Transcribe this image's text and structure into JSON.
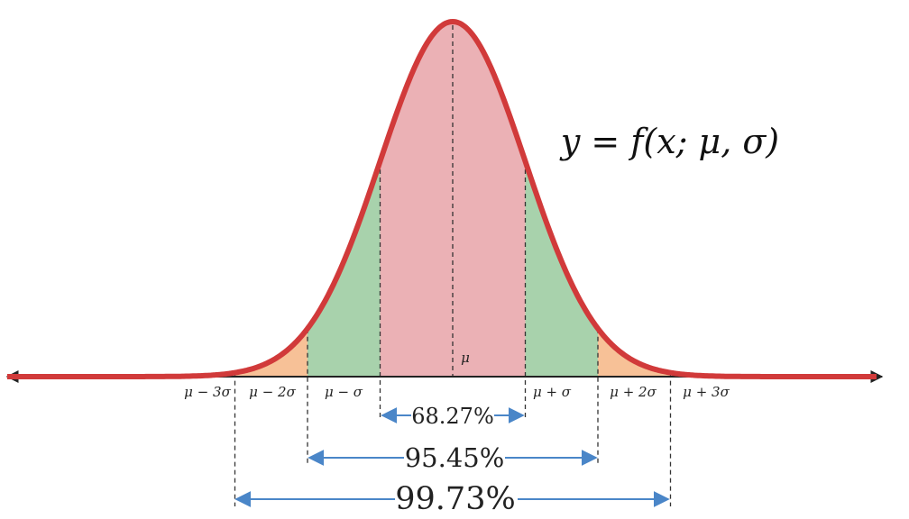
{
  "formula": "y = f(x; μ, σ)",
  "mean_label": "μ",
  "axis_labels": [
    "μ − 3σ",
    "μ − 2σ",
    "μ − σ",
    "μ + σ",
    "μ + 2σ",
    "μ + 3σ"
  ],
  "intervals": [
    {
      "label": "68.27%",
      "from": -1,
      "to": 1
    },
    {
      "label": "95.45%",
      "from": -2,
      "to": 2
    },
    {
      "label": "99.73%",
      "from": -3,
      "to": 3
    }
  ],
  "colors": {
    "curve": "#d13a3a",
    "band_1sigma": "#ebb1b5",
    "band_2sigma": "#a8d2ac",
    "band_3sigma": "#f7c197",
    "axis": "#222222",
    "arrow": "#4a86c8",
    "dashed": "#333333"
  }
}
